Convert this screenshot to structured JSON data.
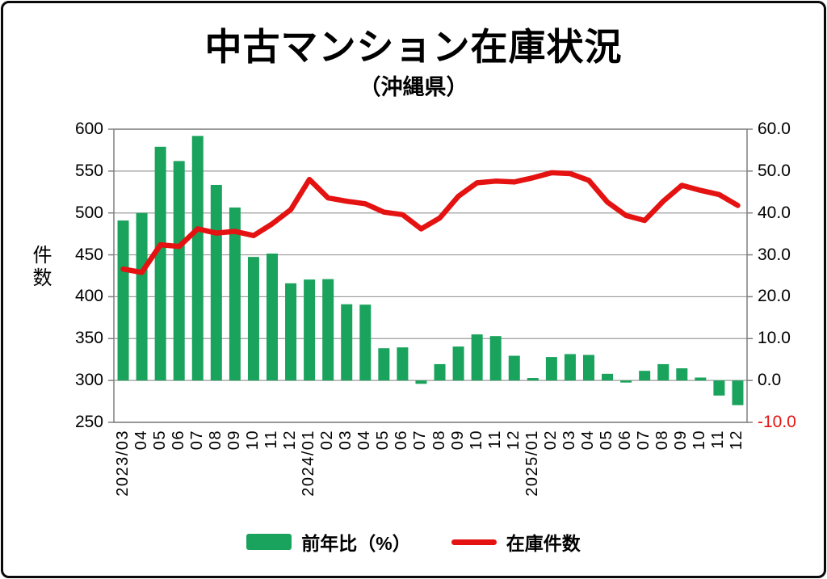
{
  "title": "中古マンション在庫状況",
  "subtitle": "（沖縄県）",
  "left_axis": {
    "label": "件数",
    "ticks": [
      "600",
      "550",
      "500",
      "450",
      "400",
      "350",
      "300",
      "250"
    ]
  },
  "right_axis": {
    "ticks": [
      "60.0",
      "50.0",
      "40.0",
      "30.0",
      "20.0",
      "10.0",
      "0.0",
      "-10.0"
    ],
    "negative_color": "#e51212"
  },
  "legend": {
    "items": [
      {
        "label": "前年比（%）",
        "type": "bar",
        "color": "#1aa35c"
      },
      {
        "label": "在庫件数",
        "type": "line",
        "color": "#e51212"
      }
    ]
  },
  "colors": {
    "bar_green": "#1aa35c",
    "line_red": "#e51212",
    "gridline": "#9b9b9b",
    "frame": "#7f7f7f"
  },
  "chart_data": {
    "type": "bar+line combo, dual axis",
    "title": "中古マンション在庫状況（沖縄県）",
    "categories": [
      "2023/03",
      "04",
      "05",
      "06",
      "07",
      "08",
      "09",
      "10",
      "11",
      "12",
      "2024/01",
      "02",
      "03",
      "04",
      "05",
      "06",
      "07",
      "08",
      "09",
      "10",
      "11",
      "12",
      "2025/01",
      "02",
      "03",
      "04",
      "05",
      "06",
      "07",
      "08",
      "09",
      "10",
      "11",
      "12"
    ],
    "series": [
      {
        "name": "前年比（%）",
        "type": "bar",
        "axis": "right",
        "color": "#1aa35c",
        "values": [
          38.2,
          40.0,
          55.8,
          52.4,
          58.4,
          46.7,
          41.3,
          29.5,
          30.3,
          23.2,
          24.1,
          24.2,
          18.2,
          18.1,
          7.7,
          7.9,
          -0.8,
          3.9,
          8.1,
          11.0,
          10.6,
          5.9,
          0.6,
          5.6,
          6.3,
          6.1,
          1.6,
          -0.5,
          2.3,
          3.9,
          2.9,
          0.7,
          -3.6,
          -5.9
        ]
      },
      {
        "name": "在庫件数",
        "type": "line",
        "axis": "left",
        "color": "#e51212",
        "values": [
          433,
          429,
          462,
          460,
          481,
          476,
          478,
          473,
          487,
          504,
          540,
          518,
          514,
          511,
          501,
          498,
          481,
          494,
          520,
          536,
          538,
          537,
          542,
          548,
          547,
          539,
          513,
          497,
          491,
          514,
          533,
          527,
          522,
          509
        ]
      }
    ],
    "left_ylabel": "件数",
    "left_ylim": [
      250,
      600
    ],
    "right_ylim": [
      -10,
      60
    ],
    "grid": "horizontal",
    "legend_position": "bottom"
  }
}
